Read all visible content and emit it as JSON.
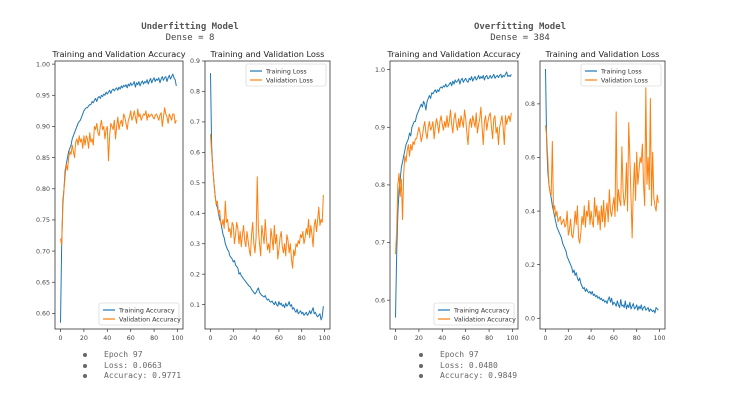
{
  "panels": [
    {
      "title": "Underfitting Model",
      "subtitle": "Dense = 8",
      "notes": [
        "Epoch 97",
        "Loss: 0.0663",
        "Accuracy: 0.9771"
      ]
    },
    {
      "title": "Overfitting Model",
      "subtitle": "Dense = 384",
      "notes": [
        "Epoch 97",
        "Loss: 0.0480",
        "Accuracy: 0.9849"
      ]
    }
  ],
  "colors": {
    "training": "#1f77b4",
    "validation": "#ff7f0e",
    "axis": "#333333",
    "tick_text": "#444444"
  },
  "chart_data": [
    {
      "type": "line",
      "title": "Training and Validation Accuracy",
      "xlim": [
        0,
        100
      ],
      "ylim": [
        0.575,
        1.005
      ],
      "xticks": [
        "0",
        "20",
        "40",
        "60",
        "80",
        "100"
      ],
      "yticks": [
        "0.60",
        "0.65",
        "0.70",
        "0.75",
        "0.80",
        "0.85",
        "0.90",
        "0.95",
        "1.00"
      ],
      "ytick_values": [
        0.6,
        0.65,
        0.7,
        0.75,
        0.8,
        0.85,
        0.9,
        0.95,
        1.0
      ],
      "legend": "lower-right",
      "series": [
        {
          "name": "Training Accuracy",
          "role": "training",
          "values": [
            0.585,
            0.71,
            0.78,
            0.8,
            0.83,
            0.84,
            0.85,
            0.86,
            0.865,
            0.87,
            0.88,
            0.885,
            0.89,
            0.895,
            0.9,
            0.905,
            0.908,
            0.91,
            0.915,
            0.92,
            0.925,
            0.928,
            0.93,
            0.93,
            0.933,
            0.935,
            0.935,
            0.94,
            0.938,
            0.942,
            0.945,
            0.94,
            0.946,
            0.948,
            0.945,
            0.95,
            0.948,
            0.952,
            0.95,
            0.955,
            0.952,
            0.955,
            0.958,
            0.953,
            0.958,
            0.96,
            0.957,
            0.96,
            0.962,
            0.958,
            0.963,
            0.96,
            0.965,
            0.962,
            0.966,
            0.964,
            0.967,
            0.962,
            0.968,
            0.965,
            0.97,
            0.966,
            0.968,
            0.972,
            0.963,
            0.97,
            0.967,
            0.972,
            0.965,
            0.97,
            0.973,
            0.968,
            0.972,
            0.97,
            0.975,
            0.968,
            0.973,
            0.977,
            0.97,
            0.975,
            0.978,
            0.972,
            0.976,
            0.974,
            0.978,
            0.97,
            0.976,
            0.98,
            0.974,
            0.978,
            0.98,
            0.972,
            0.978,
            0.982,
            0.976,
            0.98,
            0.984,
            0.978,
            0.975,
            0.965
          ]
        },
        {
          "name": "Validation Accuracy",
          "role": "validation",
          "values": [
            0.72,
            0.71,
            0.77,
            0.8,
            0.82,
            0.84,
            0.83,
            0.85,
            0.86,
            0.855,
            0.87,
            0.86,
            0.85,
            0.875,
            0.88,
            0.87,
            0.885,
            0.875,
            0.88,
            0.865,
            0.885,
            0.87,
            0.885,
            0.88,
            0.865,
            0.89,
            0.875,
            0.88,
            0.87,
            0.9,
            0.895,
            0.905,
            0.89,
            0.885,
            0.9,
            0.91,
            0.895,
            0.9,
            0.88,
            0.895,
            0.9,
            0.845,
            0.885,
            0.905,
            0.9,
            0.895,
            0.91,
            0.88,
            0.9,
            0.915,
            0.895,
            0.905,
            0.91,
            0.9,
            0.92,
            0.915,
            0.905,
            0.895,
            0.91,
            0.915,
            0.925,
            0.91,
            0.915,
            0.925,
            0.915,
            0.905,
            0.928,
            0.915,
            0.92,
            0.91,
            0.915,
            0.92,
            0.918,
            0.925,
            0.91,
            0.92,
            0.915,
            0.918,
            0.92,
            0.915,
            0.912,
            0.918,
            0.92,
            0.915,
            0.91,
            0.918,
            0.922,
            0.9,
            0.915,
            0.93,
            0.92,
            0.915,
            0.905,
            0.92,
            0.915,
            0.91,
            0.92,
            0.92,
            0.905,
            0.91
          ]
        }
      ]
    },
    {
      "type": "line",
      "title": "Training and Validation Loss",
      "xlim": [
        0,
        100
      ],
      "ylim": [
        0.02,
        0.9
      ],
      "xticks": [
        "0",
        "20",
        "40",
        "60",
        "80",
        "100"
      ],
      "yticks": [
        "0.1",
        "0.2",
        "0.3",
        "0.4",
        "0.5",
        "0.6",
        "0.7",
        "0.8",
        "0.9"
      ],
      "ytick_values": [
        0.1,
        0.2,
        0.3,
        0.4,
        0.5,
        0.6,
        0.7,
        0.8,
        0.9
      ],
      "legend": "upper-right",
      "series": [
        {
          "name": "Training Loss",
          "role": "training",
          "values": [
            0.86,
            0.62,
            0.55,
            0.5,
            0.46,
            0.43,
            0.42,
            0.4,
            0.38,
            0.37,
            0.35,
            0.33,
            0.32,
            0.3,
            0.29,
            0.28,
            0.275,
            0.26,
            0.255,
            0.25,
            0.24,
            0.245,
            0.23,
            0.225,
            0.22,
            0.2,
            0.205,
            0.195,
            0.19,
            0.185,
            0.18,
            0.175,
            0.17,
            0.165,
            0.16,
            0.158,
            0.15,
            0.145,
            0.14,
            0.135,
            0.14,
            0.148,
            0.155,
            0.14,
            0.135,
            0.13,
            0.128,
            0.125,
            0.13,
            0.12,
            0.115,
            0.118,
            0.11,
            0.108,
            0.112,
            0.105,
            0.1,
            0.11,
            0.1,
            0.095,
            0.11,
            0.1,
            0.105,
            0.095,
            0.1,
            0.09,
            0.105,
            0.095,
            0.1,
            0.11,
            0.095,
            0.1,
            0.085,
            0.09,
            0.08,
            0.075,
            0.085,
            0.07,
            0.075,
            0.08,
            0.07,
            0.075,
            0.065,
            0.07,
            0.075,
            0.065,
            0.07,
            0.08,
            0.07,
            0.08,
            0.09,
            0.07,
            0.075,
            0.065,
            0.06,
            0.065,
            0.07,
            0.05,
            0.06,
            0.095
          ]
        },
        {
          "name": "Validation Loss",
          "role": "validation",
          "values": [
            0.66,
            0.6,
            0.55,
            0.5,
            0.46,
            0.43,
            0.44,
            0.4,
            0.41,
            0.37,
            0.36,
            0.38,
            0.35,
            0.44,
            0.37,
            0.38,
            0.34,
            0.35,
            0.32,
            0.37,
            0.36,
            0.3,
            0.33,
            0.37,
            0.35,
            0.3,
            0.34,
            0.29,
            0.33,
            0.36,
            0.31,
            0.29,
            0.34,
            0.31,
            0.28,
            0.26,
            0.33,
            0.37,
            0.3,
            0.27,
            0.32,
            0.52,
            0.35,
            0.3,
            0.26,
            0.36,
            0.33,
            0.3,
            0.38,
            0.32,
            0.28,
            0.3,
            0.27,
            0.35,
            0.32,
            0.28,
            0.36,
            0.3,
            0.33,
            0.25,
            0.28,
            0.32,
            0.34,
            0.29,
            0.27,
            0.3,
            0.26,
            0.33,
            0.31,
            0.27,
            0.3,
            0.25,
            0.22,
            0.28,
            0.26,
            0.3,
            0.29,
            0.31,
            0.3,
            0.33,
            0.32,
            0.34,
            0.3,
            0.32,
            0.35,
            0.33,
            0.38,
            0.32,
            0.36,
            0.33,
            0.29,
            0.36,
            0.38,
            0.34,
            0.38,
            0.42,
            0.36,
            0.38,
            0.37,
            0.46
          ]
        }
      ]
    },
    {
      "type": "line",
      "title": "Training and Validation Accuracy",
      "xlim": [
        0,
        100
      ],
      "ylim": [
        0.55,
        1.015
      ],
      "xticks": [
        "0",
        "20",
        "40",
        "60",
        "80",
        "100"
      ],
      "yticks": [
        "0.6",
        "0.7",
        "0.8",
        "0.9",
        "1.0"
      ],
      "ytick_values": [
        0.6,
        0.7,
        0.8,
        0.9,
        1.0
      ],
      "legend": "lower-right",
      "series": [
        {
          "name": "Training Accuracy",
          "role": "training",
          "values": [
            0.57,
            0.68,
            0.75,
            0.79,
            0.81,
            0.83,
            0.84,
            0.85,
            0.86,
            0.87,
            0.875,
            0.88,
            0.89,
            0.885,
            0.9,
            0.905,
            0.91,
            0.91,
            0.92,
            0.925,
            0.93,
            0.935,
            0.94,
            0.935,
            0.945,
            0.94,
            0.93,
            0.945,
            0.95,
            0.955,
            0.95,
            0.96,
            0.958,
            0.962,
            0.965,
            0.96,
            0.965,
            0.962,
            0.968,
            0.97,
            0.968,
            0.972,
            0.97,
            0.975,
            0.97,
            0.972,
            0.975,
            0.978,
            0.972,
            0.98,
            0.975,
            0.982,
            0.978,
            0.98,
            0.984,
            0.975,
            0.982,
            0.985,
            0.978,
            0.982,
            0.985,
            0.98,
            0.978,
            0.985,
            0.982,
            0.988,
            0.98,
            0.985,
            0.988,
            0.982,
            0.985,
            0.99,
            0.984,
            0.988,
            0.985,
            0.99,
            0.982,
            0.988,
            0.99,
            0.984,
            0.986,
            0.99,
            0.985,
            0.988,
            0.992,
            0.985,
            0.988,
            0.99,
            0.986,
            0.99,
            0.992,
            0.986,
            0.99,
            0.988,
            0.992,
            0.996,
            0.988,
            0.99,
            0.988,
            0.992
          ]
        },
        {
          "name": "Validation Accuracy",
          "role": "validation",
          "values": [
            0.68,
            0.72,
            0.8,
            0.82,
            0.78,
            0.81,
            0.74,
            0.82,
            0.85,
            0.84,
            0.86,
            0.87,
            0.85,
            0.87,
            0.86,
            0.875,
            0.87,
            0.88,
            0.88,
            0.89,
            0.9,
            0.89,
            0.875,
            0.885,
            0.9,
            0.91,
            0.89,
            0.88,
            0.9,
            0.91,
            0.895,
            0.9,
            0.91,
            0.88,
            0.9,
            0.915,
            0.905,
            0.89,
            0.91,
            0.92,
            0.905,
            0.895,
            0.91,
            0.9,
            0.92,
            0.9,
            0.91,
            0.93,
            0.905,
            0.89,
            0.915,
            0.925,
            0.905,
            0.895,
            0.915,
            0.9,
            0.92,
            0.91,
            0.9,
            0.93,
            0.915,
            0.89,
            0.87,
            0.905,
            0.915,
            0.9,
            0.92,
            0.91,
            0.9,
            0.925,
            0.89,
            0.905,
            0.915,
            0.935,
            0.9,
            0.87,
            0.91,
            0.92,
            0.895,
            0.91,
            0.92,
            0.925,
            0.9,
            0.88,
            0.915,
            0.92,
            0.89,
            0.9,
            0.87,
            0.9,
            0.91,
            0.92,
            0.9,
            0.87,
            0.92,
            0.905,
            0.915,
            0.92,
            0.91,
            0.925
          ]
        }
      ]
    },
    {
      "type": "line",
      "title": "Training and Validation Loss",
      "xlim": [
        0,
        100
      ],
      "ylim": [
        -0.04,
        0.96
      ],
      "xticks": [
        "0",
        "20",
        "40",
        "60",
        "80",
        "100"
      ],
      "yticks": [
        "0.0",
        "0.2",
        "0.4",
        "0.6",
        "0.8"
      ],
      "ytick_values": [
        0.0,
        0.2,
        0.4,
        0.6,
        0.8
      ],
      "legend": "upper-right",
      "series": [
        {
          "name": "Training Loss",
          "role": "training",
          "values": [
            0.93,
            0.66,
            0.55,
            0.5,
            0.47,
            0.45,
            0.42,
            0.4,
            0.38,
            0.36,
            0.34,
            0.33,
            0.32,
            0.31,
            0.3,
            0.28,
            0.27,
            0.26,
            0.25,
            0.23,
            0.22,
            0.21,
            0.2,
            0.19,
            0.17,
            0.18,
            0.16,
            0.17,
            0.15,
            0.14,
            0.15,
            0.13,
            0.12,
            0.11,
            0.115,
            0.1,
            0.11,
            0.1,
            0.095,
            0.1,
            0.09,
            0.1,
            0.085,
            0.09,
            0.08,
            0.085,
            0.075,
            0.08,
            0.07,
            0.075,
            0.065,
            0.07,
            0.06,
            0.065,
            0.055,
            0.07,
            0.08,
            0.06,
            0.075,
            0.05,
            0.06,
            0.055,
            0.045,
            0.065,
            0.05,
            0.04,
            0.07,
            0.045,
            0.05,
            0.04,
            0.065,
            0.035,
            0.05,
            0.04,
            0.06,
            0.035,
            0.045,
            0.055,
            0.035,
            0.04,
            0.05,
            0.03,
            0.045,
            0.035,
            0.05,
            0.03,
            0.04,
            0.045,
            0.03,
            0.035,
            0.04,
            0.025,
            0.035,
            0.03,
            0.025,
            0.03,
            0.02,
            0.04,
            0.035,
            0.03
          ]
        },
        {
          "name": "Validation Loss",
          "role": "validation",
          "values": [
            0.72,
            0.68,
            0.6,
            0.5,
            0.47,
            0.46,
            0.66,
            0.4,
            0.42,
            0.38,
            0.4,
            0.36,
            0.37,
            0.38,
            0.35,
            0.36,
            0.37,
            0.34,
            0.35,
            0.4,
            0.31,
            0.33,
            0.37,
            0.31,
            0.3,
            0.34,
            0.4,
            0.35,
            0.42,
            0.3,
            0.28,
            0.32,
            0.38,
            0.35,
            0.42,
            0.34,
            0.4,
            0.38,
            0.44,
            0.35,
            0.4,
            0.36,
            0.34,
            0.45,
            0.38,
            0.42,
            0.35,
            0.4,
            0.33,
            0.42,
            0.36,
            0.44,
            0.34,
            0.4,
            0.43,
            0.36,
            0.48,
            0.4,
            0.38,
            0.42,
            0.45,
            0.38,
            0.77,
            0.4,
            0.48,
            0.44,
            0.42,
            0.64,
            0.48,
            0.42,
            0.45,
            0.58,
            0.4,
            0.73,
            0.6,
            0.45,
            0.3,
            0.48,
            0.58,
            0.44,
            0.62,
            0.5,
            0.55,
            0.6,
            0.58,
            0.65,
            0.5,
            0.42,
            0.86,
            0.5,
            0.6,
            0.48,
            0.82,
            0.42,
            0.62,
            0.45,
            0.42,
            0.4,
            0.46,
            0.43
          ]
        }
      ]
    }
  ]
}
